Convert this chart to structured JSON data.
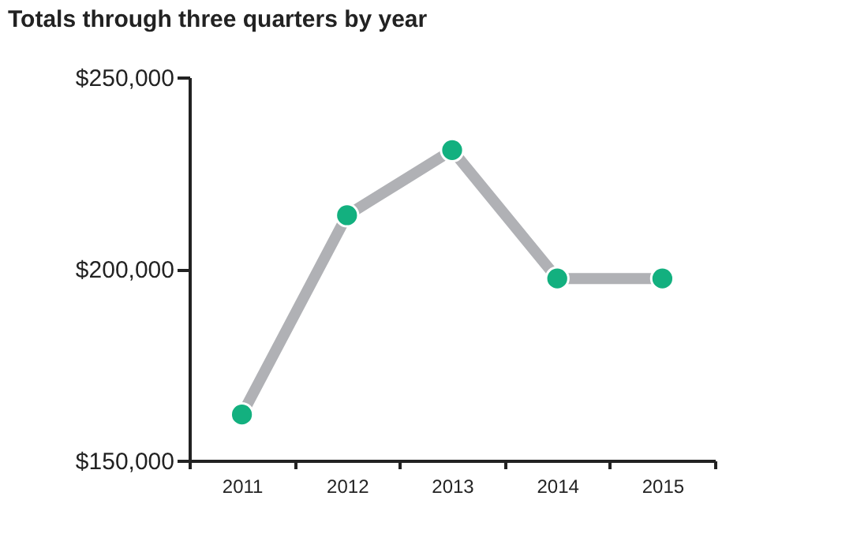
{
  "chart_data": {
    "type": "line",
    "title": "Totals through three quarters by year",
    "categories": [
      "2011",
      "2012",
      "2013",
      "2014",
      "2015"
    ],
    "series": [
      {
        "color": "#b0b1b5",
        "values": [
          162000,
          214000,
          231000,
          197500,
          197500
        ],
        "marker": "none"
      },
      {
        "type": "scatter",
        "color": "#13b07f",
        "values": [
          162000,
          214000,
          231000,
          197500,
          197500
        ],
        "marker": "circle"
      }
    ],
    "line_style": "solid",
    "ylim": [
      150000,
      250000
    ],
    "yticks": [
      {
        "value": 150000,
        "label": "$150,000"
      },
      {
        "value": 200000,
        "label": "$200,000"
      },
      {
        "value": 250000,
        "label": "$250,000"
      }
    ],
    "grid": false
  }
}
